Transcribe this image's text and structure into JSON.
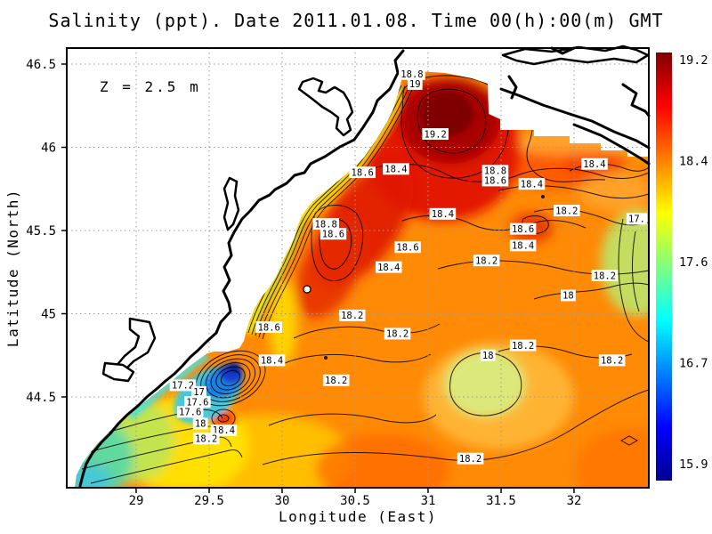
{
  "title": "Salinity (ppt). Date 2011.01.08. Time 00(h):00(m) GMT",
  "annotation": "Z = 2.5 m",
  "axes": {
    "x": {
      "label": "Longitude (East)",
      "ticks": [
        "29",
        "29.5",
        "30",
        "30.5",
        "31",
        "31.5",
        "32"
      ]
    },
    "y": {
      "label": "Latitude (North)",
      "ticks": [
        "46.5",
        "46",
        "45.5",
        "45",
        "44.5"
      ]
    }
  },
  "colorbar": {
    "tick_labels": [
      "19.2",
      "18.4",
      "17.6",
      "16.7",
      "15.9"
    ],
    "min": 15.9,
    "max": 19.2,
    "colormap": "jet"
  },
  "colors": {
    "land": "#ffffff",
    "coastline": "#000000",
    "grid": "#9a9a9a",
    "sea_base": "#ff8a05",
    "max_color": "#7c0000",
    "min_color": "#00008f"
  },
  "chart_data": {
    "type": "heatmap",
    "subtype": "filled-contour-map",
    "title": "Salinity (ppt). Date 2011.01.08. Time 00(h):00(m) GMT",
    "xlabel": "Longitude (East)",
    "ylabel": "Latitude (North)",
    "units": "ppt",
    "depth_annotation": "Z = 2.5 m",
    "x_ticks": [
      29,
      29.5,
      30,
      30.5,
      31,
      31.5,
      32
    ],
    "y_ticks": [
      46.5,
      46,
      45.5,
      45,
      44.5
    ],
    "xlim": [
      28.52,
      32.51
    ],
    "ylim": [
      43.96,
      46.6
    ],
    "grid": true,
    "legend_position": "right-colorbar",
    "colorbar": {
      "min": 15.9,
      "max": 19.2,
      "ticks": [
        19.2,
        18.4,
        17.6,
        16.7,
        15.9
      ],
      "colormap": "jet"
    },
    "contour_interval": 0.2,
    "value_range_shown": [
      15.9,
      19.2
    ],
    "maximum": {
      "value": 19.2,
      "lon": 31.05,
      "lat": 46.08
    },
    "minimum_plume": {
      "value": 16.0,
      "lon": 29.6,
      "lat": 44.55
    },
    "contour_labels": [
      {
        "value": "18.8",
        "lon": 30.89,
        "lat": 46.44
      },
      {
        "value": "19",
        "lon": 30.91,
        "lat": 46.38
      },
      {
        "value": "19.2",
        "lon": 31.05,
        "lat": 46.08
      },
      {
        "value": "18.6",
        "lon": 30.55,
        "lat": 45.85
      },
      {
        "value": "18.4",
        "lon": 30.78,
        "lat": 45.87
      },
      {
        "value": "18.8",
        "lon": 31.46,
        "lat": 45.86
      },
      {
        "value": "18.6",
        "lon": 31.46,
        "lat": 45.8
      },
      {
        "value": "18.4",
        "lon": 32.14,
        "lat": 45.9
      },
      {
        "value": "18.4",
        "lon": 31.71,
        "lat": 45.78
      },
      {
        "value": "18.4",
        "lon": 31.1,
        "lat": 45.6
      },
      {
        "value": "18.8",
        "lon": 30.3,
        "lat": 45.54
      },
      {
        "value": "18.6",
        "lon": 30.35,
        "lat": 45.48
      },
      {
        "value": "18.2",
        "lon": 31.95,
        "lat": 45.62
      },
      {
        "value": "17.",
        "lon": 32.43,
        "lat": 45.57
      },
      {
        "value": "18.6",
        "lon": 31.65,
        "lat": 45.51
      },
      {
        "value": "18.4",
        "lon": 31.65,
        "lat": 45.41
      },
      {
        "value": "18.6",
        "lon": 30.86,
        "lat": 45.4
      },
      {
        "value": "18.4",
        "lon": 30.73,
        "lat": 45.28
      },
      {
        "value": "18.2",
        "lon": 31.4,
        "lat": 45.32
      },
      {
        "value": "18.2",
        "lon": 32.21,
        "lat": 45.23
      },
      {
        "value": "18",
        "lon": 31.96,
        "lat": 45.11
      },
      {
        "value": "18.2",
        "lon": 30.48,
        "lat": 44.99
      },
      {
        "value": "18.6",
        "lon": 29.91,
        "lat": 44.92
      },
      {
        "value": "18.2",
        "lon": 30.79,
        "lat": 44.88
      },
      {
        "value": "18.4",
        "lon": 29.93,
        "lat": 44.72
      },
      {
        "value": "18.2",
        "lon": 30.37,
        "lat": 44.6
      },
      {
        "value": "18.2",
        "lon": 31.65,
        "lat": 44.81
      },
      {
        "value": "18",
        "lon": 31.41,
        "lat": 44.75
      },
      {
        "value": "18.2",
        "lon": 32.26,
        "lat": 44.72
      },
      {
        "value": "17.2",
        "lon": 29.32,
        "lat": 44.57
      },
      {
        "value": "17",
        "lon": 29.43,
        "lat": 44.53
      },
      {
        "value": "17.6",
        "lon": 29.42,
        "lat": 44.47
      },
      {
        "value": "17.6",
        "lon": 29.37,
        "lat": 44.41
      },
      {
        "value": "18",
        "lon": 29.44,
        "lat": 44.34
      },
      {
        "value": "18.4",
        "lon": 29.6,
        "lat": 44.3
      },
      {
        "value": "18.2",
        "lon": 29.48,
        "lat": 44.25
      },
      {
        "value": "18.2",
        "lon": 31.29,
        "lat": 44.13
      }
    ]
  }
}
